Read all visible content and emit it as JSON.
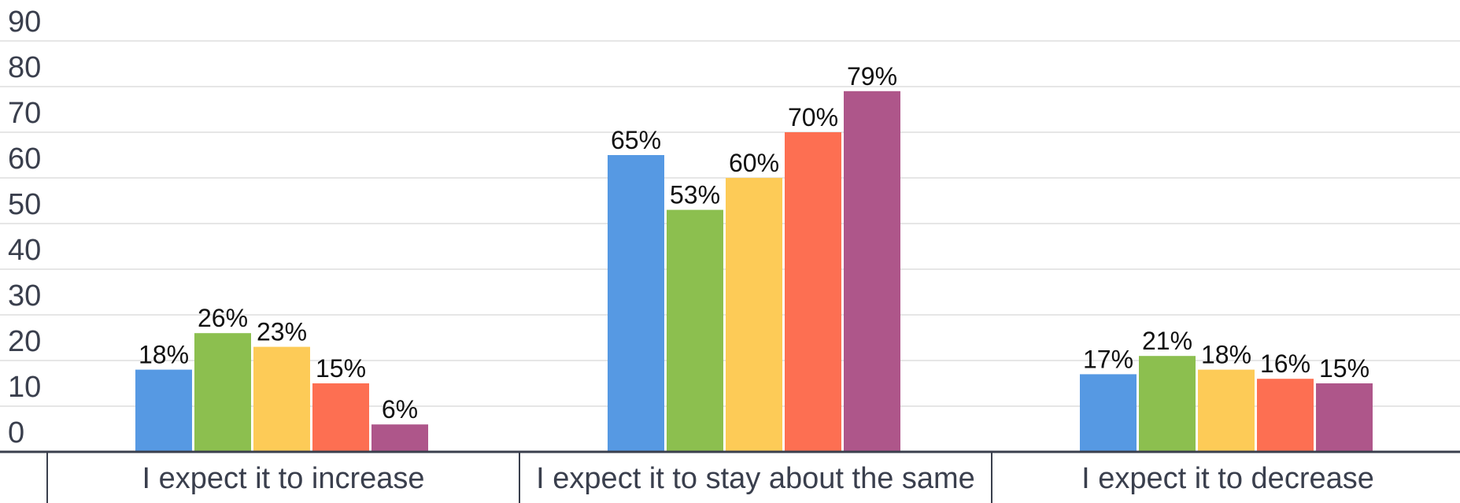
{
  "chart_data": {
    "type": "bar",
    "categories": [
      "I expect it to increase",
      "I expect it to stay about the same",
      "I expect it to decrease"
    ],
    "series": [
      {
        "values": [
          18,
          65,
          17
        ],
        "labels": [
          "18%",
          "65%",
          "17%"
        ],
        "color": "#5699e3"
      },
      {
        "values": [
          26,
          53,
          21
        ],
        "labels": [
          "26%",
          "53%",
          "21%"
        ],
        "color": "#8cbf4f"
      },
      {
        "values": [
          23,
          60,
          18
        ],
        "labels": [
          "23%",
          "60%",
          "18%"
        ],
        "color": "#fdcb57"
      },
      {
        "values": [
          15,
          70,
          16
        ],
        "labels": [
          "15%",
          "70%",
          "16%"
        ],
        "color": "#fd6f52"
      },
      {
        "values": [
          6,
          79,
          15
        ],
        "labels": [
          "6%",
          "79%",
          "15%"
        ],
        "color": "#ae568a"
      }
    ],
    "yticks": [
      "0",
      "10",
      "20",
      "30",
      "40",
      "50",
      "60",
      "70",
      "80",
      "90"
    ],
    "ylim": [
      0,
      90
    ],
    "grid": true,
    "xlabel": "",
    "ylabel": "",
    "title": ""
  },
  "colors": {
    "grid": "#e6e6e6",
    "axis": "#3a3f4d",
    "text": "#3a3f4d"
  }
}
